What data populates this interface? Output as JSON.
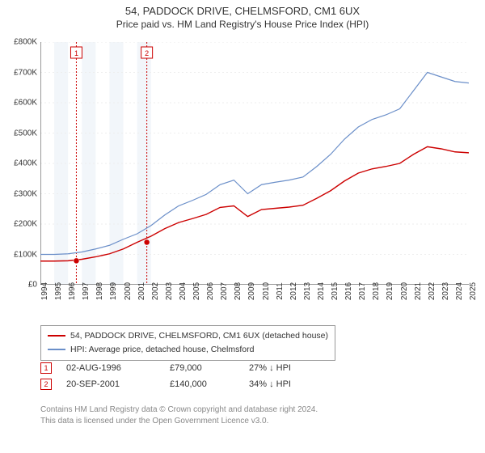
{
  "title": "54, PADDOCK DRIVE, CHELMSFORD, CM1 6UX",
  "subtitle": "Price paid vs. HM Land Registry's House Price Index (HPI)",
  "chart": {
    "type": "line",
    "background_color": "#ffffff",
    "grid_color": "#eeeeee",
    "grid_dash": "2,3",
    "x_axis": {
      "min": 1994,
      "max": 2025,
      "tick_step": 1,
      "label_fontsize": 10,
      "label_rotation": -90
    },
    "y_axis": {
      "min": 0,
      "max": 800000,
      "tick_step": 100000,
      "tick_labels": [
        "£0",
        "£100K",
        "£200K",
        "£300K",
        "£400K",
        "£500K",
        "£600K",
        "£700K",
        "£800K"
      ],
      "label_fontsize": 10
    },
    "band_years": [
      1995,
      1996,
      1997,
      1998,
      1999,
      2000,
      2001
    ],
    "band_color": "#f2f6fa",
    "series": [
      {
        "name": "hpi",
        "label": "HPI: Average price, detached house, Chelmsford",
        "color": "#6b8fc9",
        "line_width": 1.2,
        "data": [
          [
            1994,
            100000
          ],
          [
            1995,
            100000
          ],
          [
            1996,
            102000
          ],
          [
            1997,
            108000
          ],
          [
            1998,
            118000
          ],
          [
            1999,
            130000
          ],
          [
            2000,
            150000
          ],
          [
            2001,
            168000
          ],
          [
            2002,
            195000
          ],
          [
            2003,
            230000
          ],
          [
            2004,
            260000
          ],
          [
            2005,
            278000
          ],
          [
            2006,
            298000
          ],
          [
            2007,
            330000
          ],
          [
            2008,
            345000
          ],
          [
            2009,
            300000
          ],
          [
            2010,
            330000
          ],
          [
            2011,
            338000
          ],
          [
            2012,
            345000
          ],
          [
            2013,
            355000
          ],
          [
            2014,
            390000
          ],
          [
            2015,
            430000
          ],
          [
            2016,
            480000
          ],
          [
            2017,
            520000
          ],
          [
            2018,
            545000
          ],
          [
            2019,
            560000
          ],
          [
            2020,
            580000
          ],
          [
            2021,
            640000
          ],
          [
            2022,
            700000
          ],
          [
            2023,
            685000
          ],
          [
            2024,
            670000
          ],
          [
            2025,
            665000
          ]
        ]
      },
      {
        "name": "property",
        "label": "54, PADDOCK DRIVE, CHELMSFORD, CM1 6UX (detached house)",
        "color": "#cc0000",
        "line_width": 1.4,
        "data": [
          [
            1994,
            78000
          ],
          [
            1995,
            78000
          ],
          [
            1996,
            79000
          ],
          [
            1997,
            84000
          ],
          [
            1998,
            92000
          ],
          [
            1999,
            102000
          ],
          [
            2000,
            118000
          ],
          [
            2001,
            140000
          ],
          [
            2002,
            160000
          ],
          [
            2003,
            185000
          ],
          [
            2004,
            205000
          ],
          [
            2005,
            218000
          ],
          [
            2006,
            232000
          ],
          [
            2007,
            255000
          ],
          [
            2008,
            260000
          ],
          [
            2009,
            225000
          ],
          [
            2010,
            248000
          ],
          [
            2011,
            252000
          ],
          [
            2012,
            256000
          ],
          [
            2013,
            262000
          ],
          [
            2014,
            285000
          ],
          [
            2015,
            310000
          ],
          [
            2016,
            342000
          ],
          [
            2017,
            368000
          ],
          [
            2018,
            382000
          ],
          [
            2019,
            390000
          ],
          [
            2020,
            400000
          ],
          [
            2021,
            430000
          ],
          [
            2022,
            455000
          ],
          [
            2023,
            448000
          ],
          [
            2024,
            438000
          ],
          [
            2025,
            435000
          ]
        ]
      }
    ],
    "markers": [
      {
        "n": "1",
        "year": 1996.6,
        "value": 79000,
        "vline_color": "#cc0000",
        "vline_dash": "2,2",
        "dot_color": "#cc0000",
        "label_box_color": "#cc0000"
      },
      {
        "n": "2",
        "year": 2001.7,
        "value": 140000,
        "vline_color": "#cc0000",
        "vline_dash": "2,2",
        "dot_color": "#cc0000",
        "label_box_color": "#cc0000"
      }
    ]
  },
  "legend": {
    "border_color": "#999999",
    "fontsize": 10.5,
    "rows": [
      {
        "color": "#cc0000",
        "text": "54, PADDOCK DRIVE, CHELMSFORD, CM1 6UX (detached house)"
      },
      {
        "color": "#6b8fc9",
        "text": "HPI: Average price, detached house, Chelmsford"
      }
    ]
  },
  "data_points": [
    {
      "n": "1",
      "date": "02-AUG-1996",
      "price": "£79,000",
      "hpi_diff": "27% ↓ HPI"
    },
    {
      "n": "2",
      "date": "20-SEP-2001",
      "price": "£140,000",
      "hpi_diff": "34% ↓ HPI"
    }
  ],
  "copyright": {
    "line1": "Contains HM Land Registry data © Crown copyright and database right 2024.",
    "line2": "This data is licensed under the Open Government Licence v3.0."
  }
}
